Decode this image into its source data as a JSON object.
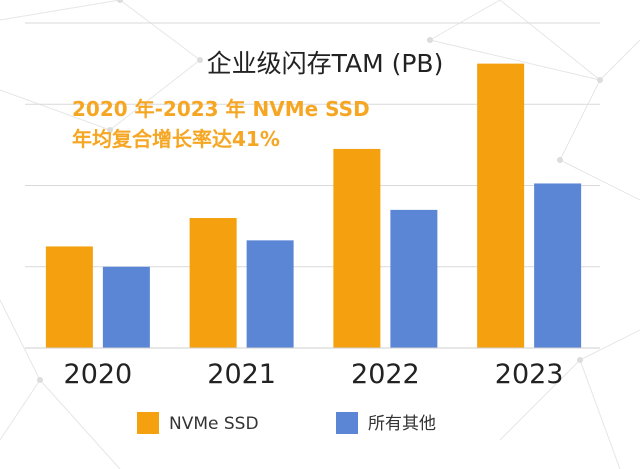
{
  "chart_data": {
    "type": "bar",
    "title": "企业级闪存TAM (PB)",
    "annotation": [
      "2020 年-2023 年 NVMe SSD",
      "年均复合增长率达41%"
    ],
    "categories": [
      "2020",
      "2021",
      "2022",
      "2023"
    ],
    "series": [
      {
        "name": "NVMe SSD",
        "color": "#f5a00f",
        "values": [
          2.5,
          3.2,
          4.9,
          7.0
        ]
      },
      {
        "name": "所有其他",
        "color": "#5b86d6",
        "values": [
          2.0,
          2.65,
          3.4,
          4.05
        ]
      }
    ],
    "ylim": [
      0,
      8
    ],
    "grid": true,
    "yticks_visible": false,
    "legend": "bottom"
  }
}
